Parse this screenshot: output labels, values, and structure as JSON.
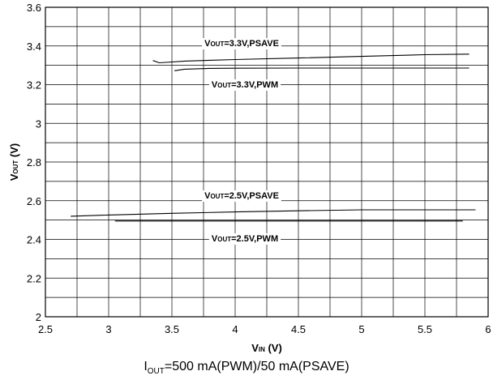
{
  "chart_data": {
    "type": "line",
    "xlabel": {
      "main": "V",
      "sub": "IN",
      "unit": " (V)"
    },
    "ylabel": {
      "main": "V",
      "sub": "OUT",
      "unit": " (V)"
    },
    "xlim": [
      2.5,
      6
    ],
    "ylim": [
      2,
      3.6
    ],
    "xticks": [
      2.5,
      3,
      3.5,
      4,
      4.5,
      5,
      5.5,
      6
    ],
    "xtick_labels": [
      "2.5",
      "3",
      "3.5",
      "4",
      "4.5",
      "5",
      "5.5",
      "6"
    ],
    "yticks": [
      2,
      2.2,
      2.4,
      2.6,
      2.8,
      3,
      3.2,
      3.4,
      3.6
    ],
    "ytick_labels": [
      "2",
      "2.2",
      "2.4",
      "2.6",
      "2.8",
      "3",
      "3.2",
      "3.4",
      "3.6"
    ],
    "grid": true,
    "series": [
      {
        "name": "VOUT=3.3V,PSAVE",
        "label": {
          "main": "V",
          "sub": "OUT",
          "rest": "=3.3V,PSAVE"
        },
        "x": [
          3.35,
          3.4,
          3.45,
          3.6,
          3.8,
          4.0,
          4.5,
          5.0,
          5.5,
          5.85
        ],
        "y": [
          3.325,
          3.313,
          3.315,
          3.322,
          3.326,
          3.33,
          3.338,
          3.346,
          3.355,
          3.358
        ]
      },
      {
        "name": "VOUT=3.3V,PWM",
        "label": {
          "main": "V",
          "sub": "OUT",
          "rest": "=3.3V,PWM"
        },
        "x": [
          3.52,
          3.6,
          3.8,
          4.0,
          4.5,
          5.0,
          5.5,
          5.85
        ],
        "y": [
          3.272,
          3.28,
          3.284,
          3.285,
          3.286,
          3.286,
          3.286,
          3.286
        ]
      },
      {
        "name": "VOUT=2.5V,PSAVE",
        "label": {
          "main": "V",
          "sub": "OUT",
          "rest": "=2.5V,PSAVE"
        },
        "x": [
          2.7,
          3.0,
          3.5,
          4.0,
          4.5,
          5.0,
          5.5,
          5.9
        ],
        "y": [
          2.52,
          2.526,
          2.535,
          2.542,
          2.548,
          2.553,
          2.553,
          2.553
        ]
      },
      {
        "name": "VOUT=2.5V,PWM",
        "label": {
          "main": "V",
          "sub": "OUT",
          "rest": "=2.5V,PWM"
        },
        "x": [
          3.05,
          3.5,
          4.0,
          4.5,
          5.0,
          5.5,
          5.8
        ],
        "y": [
          2.495,
          2.495,
          2.495,
          2.495,
          2.495,
          2.495,
          2.495
        ]
      }
    ],
    "colors": {
      "line": "#000000",
      "grid": "#000000",
      "background": "#ffffff"
    }
  },
  "caption": {
    "main": "I",
    "sub": "OUT",
    "rest": "=500 mA(PWM)/50 mA(PSAVE)"
  }
}
